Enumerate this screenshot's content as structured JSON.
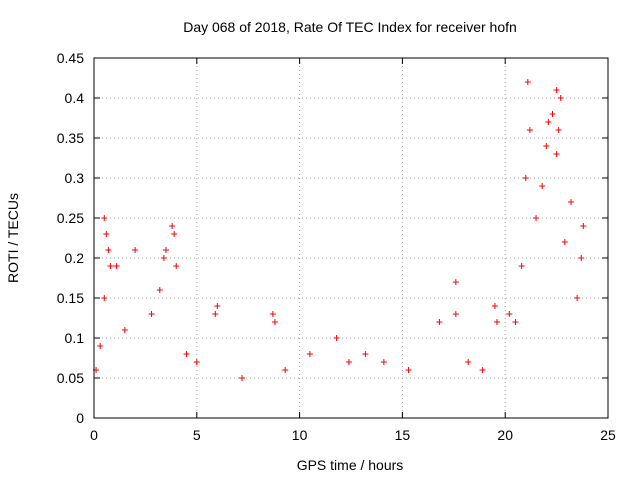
{
  "chart_data": {
    "type": "scatter",
    "title": "Day 068 of 2018, Rate Of TEC Index for receiver hofn",
    "xlabel": "GPS time / hours",
    "ylabel": "ROTI / TECUs",
    "xlim": [
      0,
      25
    ],
    "ylim": [
      0,
      0.45
    ],
    "x_ticks": [
      0,
      5,
      10,
      15,
      20,
      25
    ],
    "y_ticks": [
      0,
      0.05,
      0.1,
      0.15,
      0.2,
      0.25,
      0.3,
      0.35,
      0.4,
      0.45
    ],
    "x_tick_labels": [
      "0",
      "5",
      "10",
      "15",
      "20",
      "25"
    ],
    "y_tick_labels": [
      "0",
      "0.05",
      "0.1",
      "0.15",
      "0.2",
      "0.25",
      "0.3",
      "0.35",
      "0.4",
      "0.45"
    ],
    "grid": true,
    "marker": "+",
    "marker_color": "#ff0000",
    "series": [
      {
        "x": [
          0.5,
          0.6,
          0.7,
          0.8,
          0.5,
          1.1,
          2.0,
          3.2,
          3.4,
          3.5,
          3.8,
          3.9,
          4.0,
          2.8,
          5.9,
          6.0,
          8.7,
          8.8,
          10.5,
          11.8,
          13.2,
          16.8,
          17.6,
          17.6,
          19.5,
          19.6,
          20.8,
          21.0,
          21.1,
          21.2,
          21.5,
          21.8,
          22.0,
          22.1,
          22.3,
          22.5,
          22.5,
          22.6,
          22.7,
          23.2,
          23.8,
          23.7,
          23.5,
          22.9,
          20.2,
          20.5,
          0.1,
          0.3,
          1.5,
          4.5,
          5.0,
          7.2,
          9.3,
          12.4,
          14.1,
          15.3,
          18.2,
          18.9
        ],
        "y": [
          0.25,
          0.23,
          0.21,
          0.19,
          0.15,
          0.19,
          0.21,
          0.16,
          0.2,
          0.21,
          0.24,
          0.23,
          0.19,
          0.13,
          0.13,
          0.14,
          0.13,
          0.12,
          0.08,
          0.1,
          0.08,
          0.12,
          0.17,
          0.13,
          0.14,
          0.12,
          0.19,
          0.3,
          0.42,
          0.36,
          0.25,
          0.29,
          0.34,
          0.37,
          0.38,
          0.41,
          0.33,
          0.36,
          0.4,
          0.27,
          0.24,
          0.2,
          0.15,
          0.22,
          0.13,
          0.12,
          0.06,
          0.09,
          0.11,
          0.08,
          0.07,
          0.05,
          0.06,
          0.07,
          0.07,
          0.06,
          0.07,
          0.06
        ]
      }
    ]
  }
}
